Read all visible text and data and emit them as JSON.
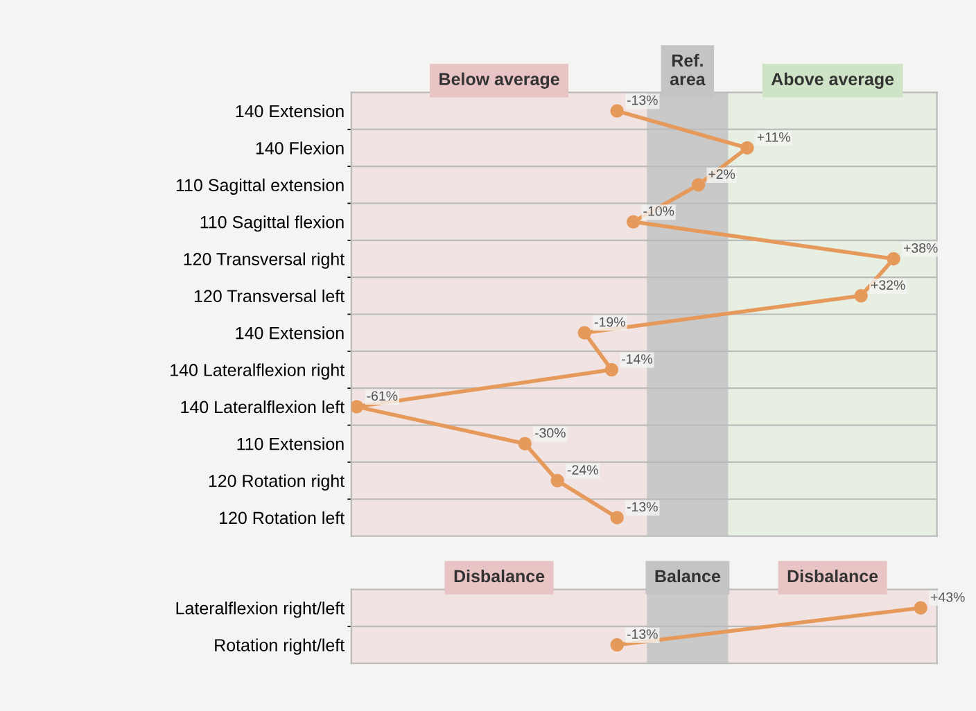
{
  "chart_data": [
    {
      "type": "line",
      "orientation": "horizontal",
      "categories": [
        "140 Extension",
        "140 Flexion",
        "110 Sagittal extension",
        "110 Sagittal flexion",
        "120 Transversal right",
        "120 Transversal left",
        "140 Extension",
        "140 Lateralflexion right",
        "140 Lateralflexion left",
        "110 Extension",
        "120 Rotation right",
        "120 Rotation left"
      ],
      "series": [
        {
          "color": "#e59a5c",
          "values": [
            -13,
            11,
            2,
            -10,
            38,
            32,
            -19,
            -14,
            -61,
            -30,
            -24,
            -13
          ],
          "value_labels": [
            "-13%",
            "+11%",
            "+2%",
            "-10%",
            "+38%",
            "+32%",
            "-19%",
            "-14%",
            "-61%",
            "-30%",
            "-24%",
            "-13%"
          ]
        }
      ],
      "bands": [
        {
          "axis": "x",
          "from": -62,
          "to": -7.5,
          "label": "Below average",
          "color": "#e8c4c4"
        },
        {
          "axis": "x",
          "from": -7.5,
          "to": 7.5,
          "label": "Ref.\narea",
          "color": "#c4c4c4"
        },
        {
          "axis": "x",
          "from": 7.5,
          "to": 46,
          "label": "Above average",
          "color": "#cfe3c6"
        }
      ],
      "xlim": [
        -62,
        46
      ],
      "tick_labels": "y",
      "grid": "y",
      "marker": "circle",
      "line_style": "solid"
    },
    {
      "type": "line",
      "orientation": "horizontal",
      "categories": [
        "Lateralflexion right/left",
        "Rotation right/left"
      ],
      "series": [
        {
          "color": "#e59a5c",
          "values": [
            43,
            -13
          ],
          "value_labels": [
            "+43%",
            "-13%"
          ]
        }
      ],
      "bands": [
        {
          "axis": "x",
          "from": -62,
          "to": -7.5,
          "label": "Disbalance",
          "color": "#e8c4c4"
        },
        {
          "axis": "x",
          "from": -7.5,
          "to": 7.5,
          "label": "Balance",
          "color": "#c4c4c4"
        },
        {
          "axis": "x",
          "from": 7.5,
          "to": 46,
          "label": "Disbalance",
          "color": "#e8c4c4"
        }
      ],
      "xlim": [
        -62,
        46
      ],
      "tick_labels": "y",
      "grid": "y",
      "marker": "circle",
      "line_style": "solid"
    }
  ]
}
